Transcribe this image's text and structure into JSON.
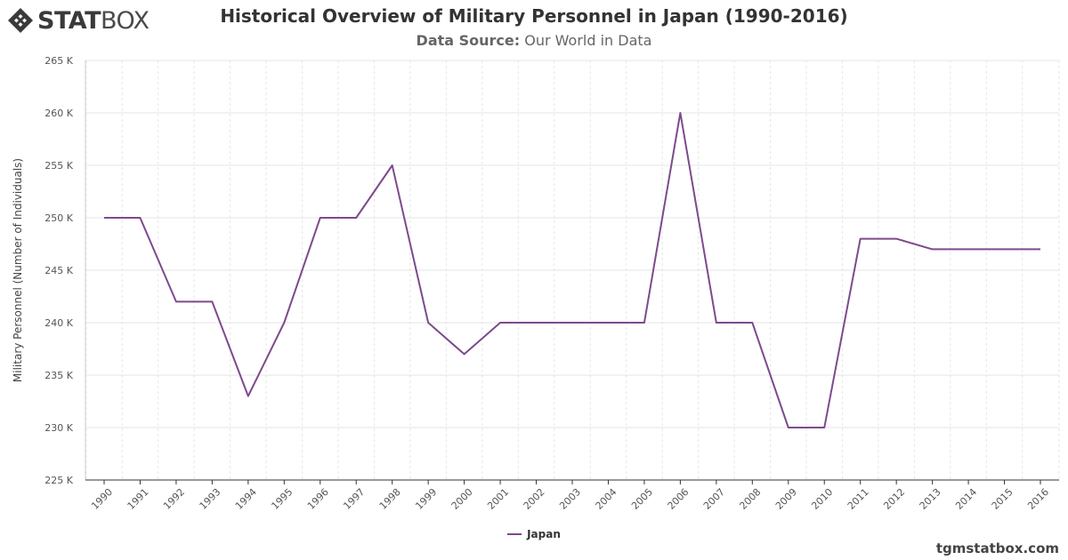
{
  "brand": {
    "logo_bold": "STAT",
    "logo_thin": "BOX",
    "logo_icon": "statbox-diamond-icon"
  },
  "header": {
    "title": "Historical Overview of Military Personnel in Japan (1990-2016)",
    "source_label": "Data Source:",
    "source_value": "Our World in Data"
  },
  "credit": "tgmstatbox.com",
  "colors": {
    "series": "#7d4a8c",
    "grid": "#e6e6e6",
    "text": "#333333"
  },
  "chart_data": {
    "type": "line",
    "title": "Historical Overview of Military Personnel in Japan (1990-2016)",
    "xlabel": "",
    "ylabel": "Military Personnel (Number of Individuals)",
    "x": [
      "1990",
      "1991",
      "1992",
      "1993",
      "1994",
      "1995",
      "1996",
      "1997",
      "1998",
      "1999",
      "2000",
      "2001",
      "2002",
      "2003",
      "2004",
      "2005",
      "2006",
      "2007",
      "2008",
      "2009",
      "2010",
      "2011",
      "2012",
      "2013",
      "2014",
      "2015",
      "2016"
    ],
    "ylim": [
      225000,
      265000
    ],
    "yticks": [
      225000,
      230000,
      235000,
      240000,
      245000,
      250000,
      255000,
      260000,
      265000
    ],
    "ytick_labels": [
      "225 K",
      "230 K",
      "235 K",
      "240 K",
      "245 K",
      "250 K",
      "255 K",
      "260 K",
      "265 K"
    ],
    "grid": true,
    "legend_position": "bottom-center",
    "series": [
      {
        "name": "Japan",
        "values": [
          250000,
          250000,
          242000,
          242000,
          233000,
          240000,
          250000,
          250000,
          255000,
          240000,
          237000,
          240000,
          240000,
          240000,
          240000,
          240000,
          260000,
          240000,
          240000,
          230000,
          230000,
          248000,
          248000,
          247000,
          247000,
          247000,
          247000
        ]
      }
    ]
  }
}
